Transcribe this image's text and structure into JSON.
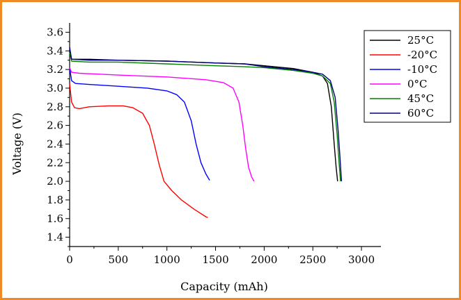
{
  "chart_data": {
    "type": "line",
    "xlabel": "Capacity (mAh)",
    "ylabel": "Voltage (V)",
    "xlim": [
      0,
      3200
    ],
    "ylim": [
      1.3,
      3.7
    ],
    "x_ticks": [
      0,
      500,
      1000,
      1500,
      2000,
      2500,
      3000
    ],
    "x_tick_labels": [
      "0",
      "500",
      "1000",
      "1500",
      "2000",
      "2500",
      "3000"
    ],
    "y_ticks": [
      1.4,
      1.6,
      1.8,
      2.0,
      2.2,
      2.4,
      2.6,
      2.8,
      3.0,
      3.2,
      3.4,
      3.6
    ],
    "y_tick_labels": [
      "1.4",
      "1.6",
      "1.8",
      "2.0",
      "2.2",
      "2.4",
      "2.6",
      "2.8",
      "3.0",
      "3.2",
      "3.4",
      "3.6"
    ],
    "grid": false,
    "legend_position": "top-right",
    "series": [
      {
        "name": "25°C",
        "color": "#000000",
        "points": [
          [
            0,
            3.4
          ],
          [
            20,
            3.31
          ],
          [
            200,
            3.31
          ],
          [
            500,
            3.3
          ],
          [
            1000,
            3.29
          ],
          [
            1500,
            3.27
          ],
          [
            1800,
            3.26
          ],
          [
            2000,
            3.24
          ],
          [
            2300,
            3.21
          ],
          [
            2500,
            3.17
          ],
          [
            2600,
            3.13
          ],
          [
            2650,
            3.05
          ],
          [
            2690,
            2.8
          ],
          [
            2720,
            2.4
          ],
          [
            2740,
            2.15
          ],
          [
            2755,
            2.0
          ]
        ]
      },
      {
        "name": "-20°C",
        "color": "#ff0000",
        "points": [
          [
            0,
            3.05
          ],
          [
            20,
            2.85
          ],
          [
            50,
            2.79
          ],
          [
            100,
            2.78
          ],
          [
            200,
            2.8
          ],
          [
            400,
            2.81
          ],
          [
            550,
            2.81
          ],
          [
            650,
            2.79
          ],
          [
            750,
            2.73
          ],
          [
            820,
            2.6
          ],
          [
            870,
            2.4
          ],
          [
            920,
            2.18
          ],
          [
            970,
            2.0
          ],
          [
            1050,
            1.9
          ],
          [
            1150,
            1.8
          ],
          [
            1280,
            1.7
          ],
          [
            1400,
            1.62
          ],
          [
            1420,
            1.61
          ]
        ]
      },
      {
        "name": "-10°C",
        "color": "#0000ff",
        "points": [
          [
            0,
            3.22
          ],
          [
            20,
            3.08
          ],
          [
            60,
            3.05
          ],
          [
            200,
            3.04
          ],
          [
            500,
            3.02
          ],
          [
            800,
            3.0
          ],
          [
            1000,
            2.97
          ],
          [
            1100,
            2.93
          ],
          [
            1180,
            2.85
          ],
          [
            1250,
            2.65
          ],
          [
            1300,
            2.4
          ],
          [
            1350,
            2.2
          ],
          [
            1400,
            2.08
          ],
          [
            1440,
            2.01
          ]
        ]
      },
      {
        "name": "0°C",
        "color": "#ff00ff",
        "points": [
          [
            0,
            3.22
          ],
          [
            20,
            3.17
          ],
          [
            100,
            3.16
          ],
          [
            500,
            3.14
          ],
          [
            1000,
            3.12
          ],
          [
            1400,
            3.09
          ],
          [
            1580,
            3.06
          ],
          [
            1680,
            3.0
          ],
          [
            1740,
            2.85
          ],
          [
            1780,
            2.6
          ],
          [
            1810,
            2.35
          ],
          [
            1840,
            2.15
          ],
          [
            1870,
            2.05
          ],
          [
            1895,
            2.0
          ]
        ]
      },
      {
        "name": "45°C",
        "color": "#007f00",
        "points": [
          [
            0,
            3.38
          ],
          [
            20,
            3.29
          ],
          [
            200,
            3.28
          ],
          [
            500,
            3.28
          ],
          [
            1000,
            3.26
          ],
          [
            1500,
            3.24
          ],
          [
            1800,
            3.23
          ],
          [
            2000,
            3.22
          ],
          [
            2300,
            3.19
          ],
          [
            2500,
            3.16
          ],
          [
            2600,
            3.13
          ],
          [
            2680,
            3.05
          ],
          [
            2720,
            2.85
          ],
          [
            2750,
            2.5
          ],
          [
            2770,
            2.2
          ],
          [
            2785,
            2.0
          ]
        ]
      },
      {
        "name": "60°C",
        "color": "#000080",
        "points": [
          [
            0,
            3.44
          ],
          [
            20,
            3.31
          ],
          [
            200,
            3.3
          ],
          [
            500,
            3.3
          ],
          [
            1000,
            3.29
          ],
          [
            1500,
            3.27
          ],
          [
            1800,
            3.26
          ],
          [
            2000,
            3.23
          ],
          [
            2300,
            3.2
          ],
          [
            2500,
            3.17
          ],
          [
            2600,
            3.15
          ],
          [
            2680,
            3.08
          ],
          [
            2730,
            2.9
          ],
          [
            2760,
            2.55
          ],
          [
            2780,
            2.25
          ],
          [
            2795,
            2.0
          ]
        ]
      }
    ]
  }
}
